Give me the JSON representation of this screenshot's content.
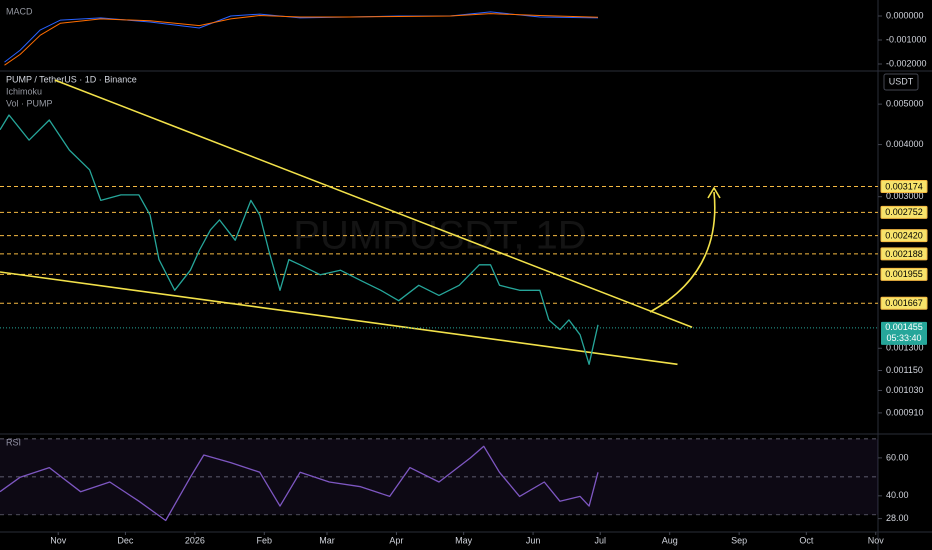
{
  "chart_data": [
    {
      "type": "line",
      "title": "MACD",
      "xlim": [
        -26,
        366
      ],
      "ylim": [
        -0.00225,
        0.000667
      ],
      "yticks": [
        {
          "value": 0,
          "label": "0.000000"
        },
        {
          "value": -0.001,
          "label": "-0.001000"
        },
        {
          "value": -0.002,
          "label": "-0.002000"
        }
      ],
      "series": [
        {
          "color": "#2962ff",
          "x": [
            -24,
            -17,
            -8,
            1,
            19,
            41,
            63,
            77,
            90,
            108,
            130,
            152,
            175,
            193,
            215,
            241
          ],
          "values": [
            -0.00192,
            -0.00142,
            -0.00058,
            -0.00017,
            -8e-05,
            -0.00025,
            -0.0005,
            0,
            8e-05,
            -8e-05,
            -4e-05,
            0,
            0,
            0.00017,
            -4e-05,
            -8e-05
          ]
        },
        {
          "color": "#ff6d00",
          "x": [
            -24,
            -17,
            -8,
            1,
            19,
            41,
            63,
            77,
            90,
            108,
            130,
            152,
            175,
            193,
            215,
            241
          ],
          "values": [
            -0.00205,
            -0.0016,
            -0.0008,
            -0.0003,
            -0.00012,
            -0.0002,
            -0.0004,
            -0.00012,
            2e-05,
            -4e-05,
            -4e-05,
            -2e-05,
            0,
            0.0001,
            2e-05,
            -5e-05
          ]
        }
      ]
    },
    {
      "type": "line",
      "title": "PUMP / TetherUS · 1D · Binance",
      "indicators": [
        "Ichimoku",
        "Vol · PUMP"
      ],
      "watermark": "PUMPUSDT, 1D",
      "unit": "USDT",
      "log_scale": true,
      "xlim": [
        -26,
        366
      ],
      "ylim": [
        0.000819,
        0.00597
      ],
      "yticks": [
        {
          "value": 0.005,
          "label": "0.005000"
        },
        {
          "value": 0.004,
          "label": "0.004000"
        },
        {
          "value": 0.003,
          "label": "0.003000"
        },
        {
          "value": 0.0013,
          "label": "0.001300"
        },
        {
          "value": 0.00115,
          "label": "0.001150"
        },
        {
          "value": 0.00103,
          "label": "0.001030"
        },
        {
          "value": 0.00091,
          "label": "0.000910"
        }
      ],
      "color": "#26a69a",
      "x": [
        -26,
        -22,
        -13,
        -4,
        5,
        14,
        19,
        28,
        36,
        41,
        45,
        52,
        59,
        63,
        68,
        72,
        79,
        86,
        90,
        94,
        99,
        103,
        108,
        117,
        126,
        135,
        144,
        152,
        161,
        170,
        179,
        188,
        193,
        197,
        206,
        215,
        219,
        224,
        228,
        233,
        237,
        241
      ],
      "values": [
        0.00434,
        0.00471,
        0.0041,
        0.00458,
        0.00388,
        0.00348,
        0.00294,
        0.00303,
        0.00303,
        0.00271,
        0.00212,
        0.00179,
        0.002,
        0.00223,
        0.0025,
        0.00264,
        0.00236,
        0.00294,
        0.00271,
        0.00223,
        0.00179,
        0.00212,
        0.00206,
        0.00195,
        0.002,
        0.00189,
        0.00179,
        0.00169,
        0.00184,
        0.00174,
        0.00184,
        0.00206,
        0.00206,
        0.00184,
        0.00179,
        0.00179,
        0.00152,
        0.00144,
        0.00152,
        0.0014,
        0.00119,
        0.00148
      ],
      "levels": [
        {
          "value": 0.003174,
          "label": "0.003174"
        },
        {
          "value": 0.002752,
          "label": "0.002752"
        },
        {
          "value": 0.00242,
          "label": "0.002420"
        },
        {
          "value": 0.002188,
          "label": "0.002188"
        },
        {
          "value": 0.001955,
          "label": "0.001955"
        },
        {
          "value": 0.001667,
          "label": "0.001667"
        }
      ],
      "level_color": "#f5b942",
      "last_price": {
        "value": 0.001455,
        "label": "0.001455",
        "countdown": "05:33:40"
      },
      "trend_color": "#f2e14a",
      "trendlines": [
        {
          "x": [
            -1.5,
            283
          ],
          "values": [
            0.00571,
            0.00146
          ]
        },
        {
          "x": [
            -26,
            276.5
          ],
          "values": [
            0.00198,
            0.00119
          ]
        }
      ]
    },
    {
      "type": "line",
      "title": "RSI",
      "xlim": [
        -26,
        366
      ],
      "ylim": [
        22,
        71
      ],
      "yticks": [
        {
          "value": 60,
          "label": "60.00"
        },
        {
          "value": 40,
          "label": "40.00"
        },
        {
          "value": 28,
          "label": "28.00"
        }
      ],
      "bands": [
        30,
        50,
        70
      ],
      "color": "#7e57c2",
      "x": [
        -26,
        -17,
        -4,
        10,
        23,
        36,
        48,
        59,
        65,
        77,
        90,
        99,
        108,
        121,
        135,
        148,
        157,
        170,
        184,
        190,
        197,
        206,
        217,
        224,
        233,
        237,
        241
      ],
      "values": [
        42.2,
        49.8,
        54.9,
        42.2,
        47.3,
        37.2,
        27.0,
        49.8,
        61.5,
        57.5,
        52.4,
        34.6,
        52.4,
        47.3,
        44.8,
        39.7,
        54.9,
        47.3,
        60,
        66.1,
        52.4,
        39.7,
        47.3,
        37.2,
        39.7,
        34.6,
        52.4
      ],
      "xticks": [
        {
          "value": 0,
          "label": "Nov"
        },
        {
          "value": 30,
          "label": "Dec"
        },
        {
          "value": 61,
          "label": "2026"
        },
        {
          "value": 92,
          "label": "Feb"
        },
        {
          "value": 120,
          "label": "Mar"
        },
        {
          "value": 151,
          "label": "Apr"
        },
        {
          "value": 181,
          "label": "May"
        },
        {
          "value": 212,
          "label": "Jun"
        },
        {
          "value": 242,
          "label": "Jul"
        },
        {
          "value": 273,
          "label": "Aug"
        },
        {
          "value": 304,
          "label": "Sep"
        },
        {
          "value": 334,
          "label": "Oct"
        },
        {
          "value": 365,
          "label": "Nov"
        }
      ]
    }
  ]
}
